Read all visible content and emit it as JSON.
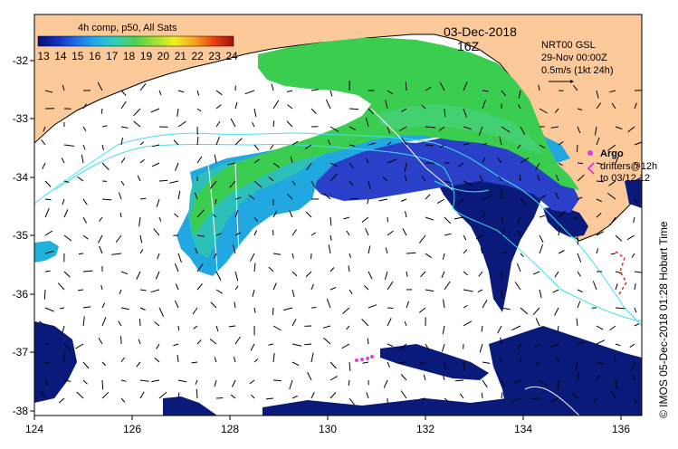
{
  "map": {
    "date": "03-Dec-2018",
    "hour": "16Z",
    "colorbar_title": "4h comp, p50, All Sats",
    "colorbar_ticks": [
      "13",
      "14",
      "15",
      "16",
      "17",
      "18",
      "19",
      "20",
      "21",
      "22",
      "23",
      "24"
    ],
    "current_info": {
      "line1": "NRT00 GSL",
      "line2": "29-Nov 00:00Z",
      "line3": "0.5m/s (1kt 24h)"
    },
    "argo": {
      "label": "Argo",
      "drifters_line1": "drifters@12h",
      "drifters_line2": "to 03/12 12"
    },
    "footer": "© IMOS 05-Dec-2018 01:28 Hobart Time",
    "lat_ticks": [
      "-32",
      "-33",
      "-34",
      "-35",
      "-36",
      "-37",
      "-38"
    ],
    "lon_ticks": [
      "124",
      "126",
      "128",
      "130",
      "132",
      "134",
      "136"
    ],
    "colors": {
      "land": "#fcc99a",
      "ocean": "#ffffff",
      "deep_blue": "#0a1a7a",
      "mid_blue": "#2a40c8",
      "light_blue": "#2a8ee0",
      "cyan": "#20c8d8",
      "teal": "#38c898",
      "green": "#3acd50",
      "contour": "#40e0f0",
      "argo": "#e040e0"
    }
  }
}
